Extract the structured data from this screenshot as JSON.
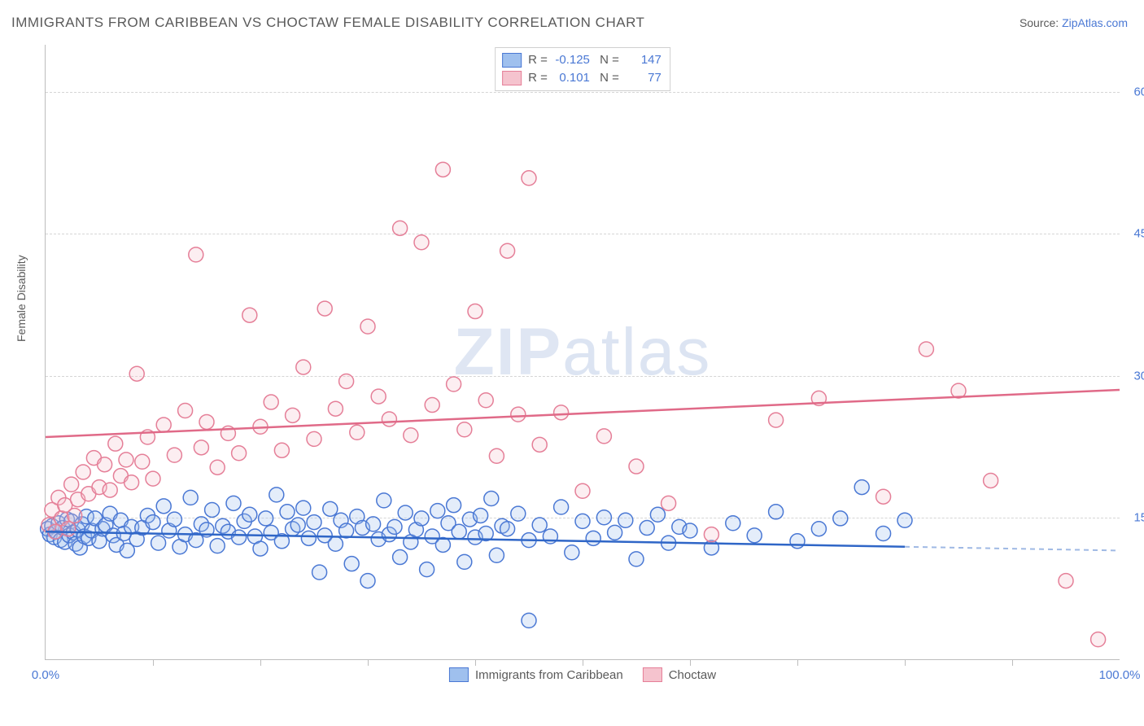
{
  "title": "IMMIGRANTS FROM CARIBBEAN VS CHOCTAW FEMALE DISABILITY CORRELATION CHART",
  "source_label": "Source:",
  "source_name": "ZipAtlas.com",
  "watermark": {
    "part1": "ZIP",
    "part2": "atlas"
  },
  "y_axis_label": "Female Disability",
  "chart": {
    "type": "scatter",
    "xlim": [
      0,
      100
    ],
    "ylim": [
      0,
      65
    ],
    "x_ticks_major": [
      0,
      100
    ],
    "x_ticks_minor": [
      10,
      20,
      30,
      40,
      50,
      60,
      70,
      80,
      90
    ],
    "x_tick_labels": [
      "0.0%",
      "100.0%"
    ],
    "y_gridlines": [
      15,
      30,
      45,
      60
    ],
    "y_tick_labels": [
      "15.0%",
      "30.0%",
      "45.0%",
      "60.0%"
    ],
    "background_color": "#ffffff",
    "grid_color": "#d5d5d5",
    "axis_color": "#bdbdbd",
    "marker_radius": 9,
    "marker_stroke_width": 1.5,
    "marker_fill_opacity": 0.28,
    "series": [
      {
        "key": "s1",
        "label": "Immigrants from Caribbean",
        "color_fill": "#9fc0ee",
        "color_stroke": "#4a78d4",
        "trend_color": "#2f66c7",
        "trend_dash_color": "#9fb9e4",
        "R": "-0.125",
        "N": "147",
        "trend_y_at_x0": 13.5,
        "trend_y_at_x100": 11.5,
        "trend_dash_start_x": 80,
        "points": [
          [
            0.2,
            13.8
          ],
          [
            0.4,
            13.2
          ],
          [
            0.6,
            14.1
          ],
          [
            0.8,
            12.9
          ],
          [
            1,
            13.5
          ],
          [
            1.2,
            14.4
          ],
          [
            1.4,
            12.6
          ],
          [
            1.6,
            13.9
          ],
          [
            1.8,
            12.4
          ],
          [
            2,
            14.8
          ],
          [
            2.2,
            13.1
          ],
          [
            2.4,
            14.6
          ],
          [
            2.6,
            13.4
          ],
          [
            2.8,
            12.2
          ],
          [
            3,
            13.7
          ],
          [
            3.2,
            11.8
          ],
          [
            3.4,
            14.3
          ],
          [
            3.6,
            13.0
          ],
          [
            3.8,
            15.1
          ],
          [
            4,
            12.8
          ],
          [
            4.3,
            13.6
          ],
          [
            4.6,
            14.9
          ],
          [
            5,
            12.5
          ],
          [
            5.3,
            13.8
          ],
          [
            5.6,
            14.2
          ],
          [
            6,
            15.4
          ],
          [
            6.3,
            13.1
          ],
          [
            6.6,
            12.1
          ],
          [
            7,
            14.7
          ],
          [
            7.3,
            13.3
          ],
          [
            7.6,
            11.5
          ],
          [
            8,
            14.0
          ],
          [
            8.5,
            12.7
          ],
          [
            9,
            13.9
          ],
          [
            9.5,
            15.2
          ],
          [
            10,
            14.5
          ],
          [
            10.5,
            12.3
          ],
          [
            11,
            16.2
          ],
          [
            11.5,
            13.6
          ],
          [
            12,
            14.8
          ],
          [
            12.5,
            11.9
          ],
          [
            13,
            13.2
          ],
          [
            13.5,
            17.1
          ],
          [
            14,
            12.6
          ],
          [
            14.5,
            14.3
          ],
          [
            15,
            13.7
          ],
          [
            15.5,
            15.8
          ],
          [
            16,
            12.0
          ],
          [
            16.5,
            14.1
          ],
          [
            17,
            13.5
          ],
          [
            17.5,
            16.5
          ],
          [
            18,
            12.9
          ],
          [
            18.5,
            14.6
          ],
          [
            19,
            15.3
          ],
          [
            19.5,
            13.0
          ],
          [
            20,
            11.7
          ],
          [
            20.5,
            14.9
          ],
          [
            21,
            13.4
          ],
          [
            21.5,
            17.4
          ],
          [
            22,
            12.5
          ],
          [
            22.5,
            15.6
          ],
          [
            23,
            13.8
          ],
          [
            23.5,
            14.2
          ],
          [
            24,
            16.0
          ],
          [
            24.5,
            12.8
          ],
          [
            25,
            14.5
          ],
          [
            25.5,
            9.2
          ],
          [
            26,
            13.1
          ],
          [
            26.5,
            15.9
          ],
          [
            27,
            12.2
          ],
          [
            27.5,
            14.7
          ],
          [
            28,
            13.6
          ],
          [
            28.5,
            10.1
          ],
          [
            29,
            15.1
          ],
          [
            29.5,
            13.9
          ],
          [
            30,
            8.3
          ],
          [
            30.5,
            14.3
          ],
          [
            31,
            12.7
          ],
          [
            31.5,
            16.8
          ],
          [
            32,
            13.2
          ],
          [
            32.5,
            14.0
          ],
          [
            33,
            10.8
          ],
          [
            33.5,
            15.5
          ],
          [
            34,
            12.4
          ],
          [
            34.5,
            13.7
          ],
          [
            35,
            14.9
          ],
          [
            35.5,
            9.5
          ],
          [
            36,
            13.0
          ],
          [
            36.5,
            15.7
          ],
          [
            37,
            12.1
          ],
          [
            37.5,
            14.4
          ],
          [
            38,
            16.3
          ],
          [
            38.5,
            13.5
          ],
          [
            39,
            10.3
          ],
          [
            39.5,
            14.8
          ],
          [
            40,
            12.9
          ],
          [
            40.5,
            15.2
          ],
          [
            41,
            13.3
          ],
          [
            41.5,
            17.0
          ],
          [
            42,
            11.0
          ],
          [
            42.5,
            14.1
          ],
          [
            43,
            13.8
          ],
          [
            44,
            15.4
          ],
          [
            45,
            12.6
          ],
          [
            46,
            14.2
          ],
          [
            47,
            13.0
          ],
          [
            48,
            16.1
          ],
          [
            49,
            11.3
          ],
          [
            50,
            14.6
          ],
          [
            51,
            12.8
          ],
          [
            52,
            15.0
          ],
          [
            53,
            13.4
          ],
          [
            54,
            14.7
          ],
          [
            55,
            10.6
          ],
          [
            56,
            13.9
          ],
          [
            57,
            15.3
          ],
          [
            58,
            12.3
          ],
          [
            59,
            14.0
          ],
          [
            60,
            13.6
          ],
          [
            62,
            11.8
          ],
          [
            64,
            14.4
          ],
          [
            66,
            13.1
          ],
          [
            68,
            15.6
          ],
          [
            70,
            12.5
          ],
          [
            72,
            13.8
          ],
          [
            74,
            14.9
          ],
          [
            76,
            18.2
          ],
          [
            78,
            13.3
          ],
          [
            80,
            14.7
          ],
          [
            45,
            4.1
          ]
        ]
      },
      {
        "key": "s2",
        "label": "Choctaw",
        "color_fill": "#f5c3ce",
        "color_stroke": "#e57f98",
        "trend_color": "#e06a88",
        "R": "0.101",
        "N": "77",
        "trend_y_at_x0": 23.5,
        "trend_y_at_x100": 28.5,
        "points": [
          [
            0.3,
            14.2
          ],
          [
            0.6,
            15.8
          ],
          [
            0.9,
            13.5
          ],
          [
            1.2,
            17.1
          ],
          [
            1.5,
            14.9
          ],
          [
            1.8,
            16.3
          ],
          [
            2.1,
            13.8
          ],
          [
            2.4,
            18.5
          ],
          [
            2.7,
            15.2
          ],
          [
            3,
            16.9
          ],
          [
            3.5,
            19.8
          ],
          [
            4,
            17.5
          ],
          [
            4.5,
            21.3
          ],
          [
            5,
            18.2
          ],
          [
            5.5,
            20.6
          ],
          [
            6,
            17.9
          ],
          [
            6.5,
            22.8
          ],
          [
            7,
            19.4
          ],
          [
            7.5,
            21.1
          ],
          [
            8,
            18.7
          ],
          [
            8.5,
            30.2
          ],
          [
            9,
            20.9
          ],
          [
            9.5,
            23.5
          ],
          [
            10,
            19.1
          ],
          [
            11,
            24.8
          ],
          [
            12,
            21.6
          ],
          [
            13,
            26.3
          ],
          [
            14,
            42.8
          ],
          [
            14.5,
            22.4
          ],
          [
            15,
            25.1
          ],
          [
            16,
            20.3
          ],
          [
            17,
            23.9
          ],
          [
            18,
            21.8
          ],
          [
            19,
            36.4
          ],
          [
            20,
            24.6
          ],
          [
            21,
            27.2
          ],
          [
            22,
            22.1
          ],
          [
            23,
            25.8
          ],
          [
            24,
            30.9
          ],
          [
            25,
            23.3
          ],
          [
            26,
            37.1
          ],
          [
            27,
            26.5
          ],
          [
            28,
            29.4
          ],
          [
            29,
            24.0
          ],
          [
            30,
            35.2
          ],
          [
            31,
            27.8
          ],
          [
            32,
            25.4
          ],
          [
            33,
            45.6
          ],
          [
            34,
            23.7
          ],
          [
            35,
            44.1
          ],
          [
            36,
            26.9
          ],
          [
            37,
            51.8
          ],
          [
            38,
            29.1
          ],
          [
            39,
            24.3
          ],
          [
            40,
            36.8
          ],
          [
            41,
            27.4
          ],
          [
            42,
            21.5
          ],
          [
            43,
            43.2
          ],
          [
            44,
            25.9
          ],
          [
            45,
            50.9
          ],
          [
            46,
            22.7
          ],
          [
            48,
            26.1
          ],
          [
            50,
            17.8
          ],
          [
            52,
            23.6
          ],
          [
            55,
            20.4
          ],
          [
            58,
            16.5
          ],
          [
            62,
            13.2
          ],
          [
            68,
            25.3
          ],
          [
            72,
            27.6
          ],
          [
            78,
            17.2
          ],
          [
            82,
            32.8
          ],
          [
            85,
            28.4
          ],
          [
            88,
            18.9
          ],
          [
            95,
            8.3
          ],
          [
            98,
            2.1
          ]
        ]
      }
    ]
  },
  "legend_label_s1": "Immigrants from Caribbean",
  "legend_label_s2": "Choctaw"
}
